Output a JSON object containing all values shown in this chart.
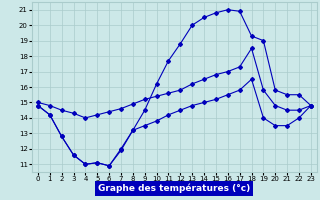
{
  "xlabel": "Graphe des températures (°c)",
  "bg_color": "#cce8e8",
  "grid_color": "#aacccc",
  "line_color": "#0000bb",
  "x_ticks": [
    0,
    1,
    2,
    3,
    4,
    5,
    6,
    7,
    8,
    9,
    10,
    11,
    12,
    13,
    14,
    15,
    16,
    17,
    18,
    19,
    20,
    21,
    22,
    23
  ],
  "y_ticks": [
    11,
    12,
    13,
    14,
    15,
    16,
    17,
    18,
    19,
    20,
    21
  ],
  "ylim": [
    10.5,
    21.5
  ],
  "xlim": [
    -0.5,
    23.5
  ],
  "line1_x": [
    0,
    1,
    2,
    3,
    4,
    5,
    6,
    7,
    8,
    9,
    10,
    11,
    12,
    13,
    14,
    15,
    16,
    17,
    18,
    19,
    20,
    21,
    22,
    23
  ],
  "line1_y": [
    14.8,
    14.2,
    12.8,
    11.6,
    11.0,
    11.1,
    10.9,
    11.9,
    13.2,
    14.5,
    16.2,
    17.7,
    18.8,
    20.0,
    20.5,
    20.8,
    21.0,
    20.9,
    19.3,
    19.0,
    15.8,
    15.5,
    15.5,
    14.8
  ],
  "line2_x": [
    0,
    1,
    2,
    3,
    4,
    5,
    6,
    7,
    8,
    9,
    10,
    11,
    12,
    13,
    14,
    15,
    16,
    17,
    18,
    19,
    20,
    21,
    22,
    23
  ],
  "line2_y": [
    15.0,
    14.8,
    14.5,
    14.3,
    14.0,
    14.2,
    14.4,
    14.6,
    14.9,
    15.2,
    15.4,
    15.6,
    15.8,
    16.2,
    16.5,
    16.8,
    17.0,
    17.3,
    18.5,
    15.8,
    14.8,
    14.5,
    14.5,
    14.8
  ],
  "line3_x": [
    0,
    1,
    2,
    3,
    4,
    5,
    6,
    7,
    8,
    9,
    10,
    11,
    12,
    13,
    14,
    15,
    16,
    17,
    18,
    19,
    20,
    21,
    22,
    23
  ],
  "line3_y": [
    14.8,
    14.2,
    12.8,
    11.6,
    11.0,
    11.1,
    10.9,
    12.0,
    13.2,
    13.5,
    13.8,
    14.2,
    14.5,
    14.8,
    15.0,
    15.2,
    15.5,
    15.8,
    16.5,
    14.0,
    13.5,
    13.5,
    14.0,
    14.8
  ],
  "marker": "D",
  "markersize": 2.0,
  "linewidth": 0.8,
  "tick_fontsize": 5.0,
  "label_fontsize": 6.5
}
